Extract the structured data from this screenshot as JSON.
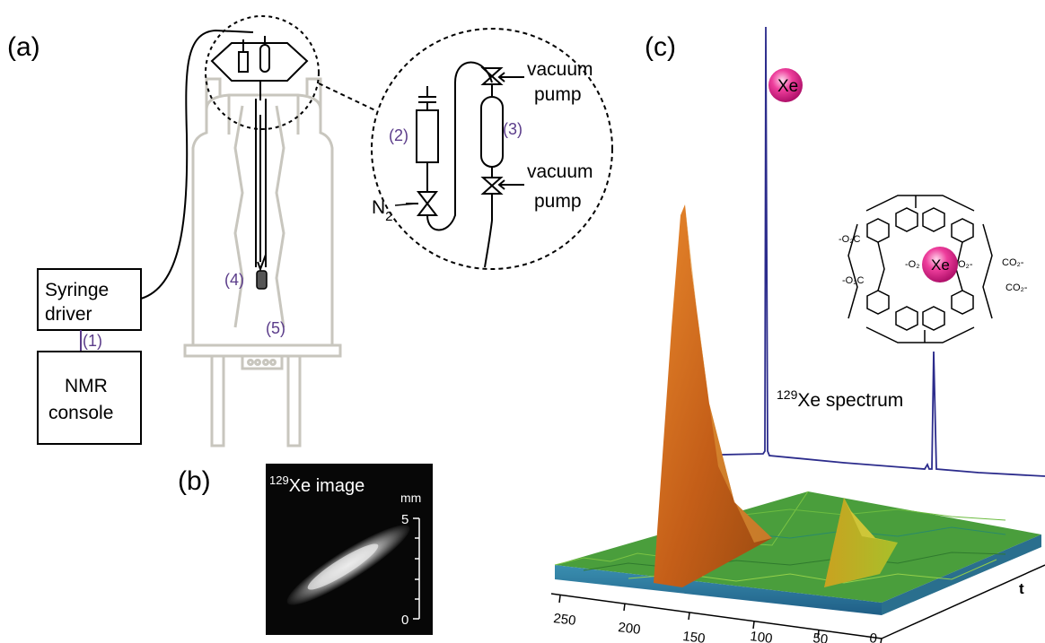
{
  "panels": {
    "a": "(a)",
    "b": "(b)",
    "c": "(c)"
  },
  "boxes": {
    "syringe_line1": "Syringe",
    "syringe_line2": "driver",
    "nmr_line1": "NMR",
    "nmr_line2": "console"
  },
  "callouts": {
    "n1": "(1)",
    "n2": "(2)",
    "n3": "(3)",
    "n4": "(4)",
    "n5": "(5)"
  },
  "inset": {
    "vacuum": "vacuum",
    "pump": "pump",
    "n2_base": "N",
    "n2_sub": "2"
  },
  "image_b": {
    "title_sup": "129",
    "title_rest": "Xe image",
    "unit": "mm",
    "scale_top": "5",
    "scale_bottom": "0"
  },
  "plot_c": {
    "xe_ball": "Xe",
    "spectrum_sup": "129",
    "spectrum_rest": "Xe spectrum",
    "cage_xe": "Xe",
    "ticks": [
      "250",
      "200",
      "150",
      "100",
      "50",
      "0"
    ],
    "axis_t": "t",
    "cage_labels": [
      "-O₂C",
      "CO₂-",
      "-O₂C",
      "CO₂-",
      "-O₂",
      "O₂-"
    ]
  },
  "colors": {
    "apparatus_grey": "#c8c6be",
    "label_purple": "#5b3c8a",
    "spectrum_blue": "#2c2c8c",
    "xe_pink": "#e8208a",
    "surface_green": "#3f9a3a",
    "peak_orange": "#c8621a"
  }
}
